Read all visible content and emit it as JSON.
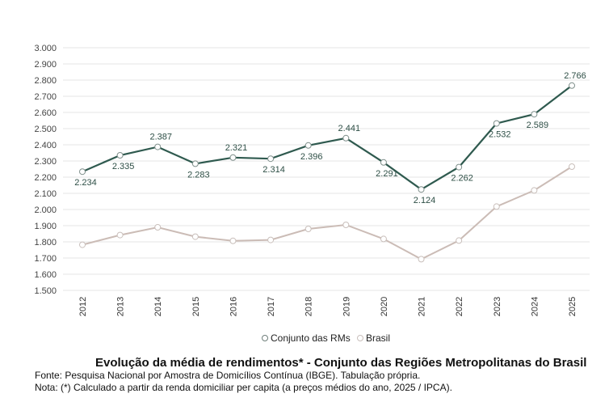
{
  "chart_data": {
    "type": "line",
    "categories": [
      "2012",
      "2013",
      "2014",
      "2015",
      "2016",
      "2017",
      "2018",
      "2019",
      "2020",
      "2021",
      "2022",
      "2023",
      "2024",
      "2025"
    ],
    "series": [
      {
        "name": "Conjunto das RMs",
        "color": "#2f5a4f",
        "values": [
          2234,
          2335,
          2387,
          2283,
          2321,
          2314,
          2396,
          2441,
          2291,
          2124,
          2262,
          2532,
          2589,
          2766
        ],
        "labels": [
          "2.234",
          "2.335",
          "2.387",
          "2.283",
          "2.321",
          "2.314",
          "2.396",
          "2.441",
          "2.291",
          "2.124",
          "2.262",
          "2.532",
          "2.589",
          "2.766"
        ]
      },
      {
        "name": "Brasil",
        "color": "#cbbcb6",
        "values": [
          1782,
          1842,
          1890,
          1832,
          1806,
          1812,
          1880,
          1905,
          1818,
          1693,
          1808,
          2018,
          2118,
          2265
        ]
      }
    ],
    "yticks": [
      "1.500",
      "1.600",
      "1.700",
      "1.800",
      "1.900",
      "2.000",
      "2.100",
      "2.200",
      "2.300",
      "2.400",
      "2.500",
      "2.600",
      "2.700",
      "2.800",
      "2.900",
      "3.000"
    ],
    "ylim": [
      1500,
      3000
    ],
    "grid": true,
    "legend_position": "bottom"
  },
  "caption": {
    "title": "Evolução da média de rendimentos* - Conjunto das Regiões Metropolitanas do Brasil",
    "source": "Fonte: Pesquisa Nacional por Amostra de Domicílios Contínua (IBGE). Tabulação própria.",
    "note": "Nota: (*) Calculado a partir da renda domiciliar per capita (a preços médios do ano, 2025 / IPCA)."
  }
}
